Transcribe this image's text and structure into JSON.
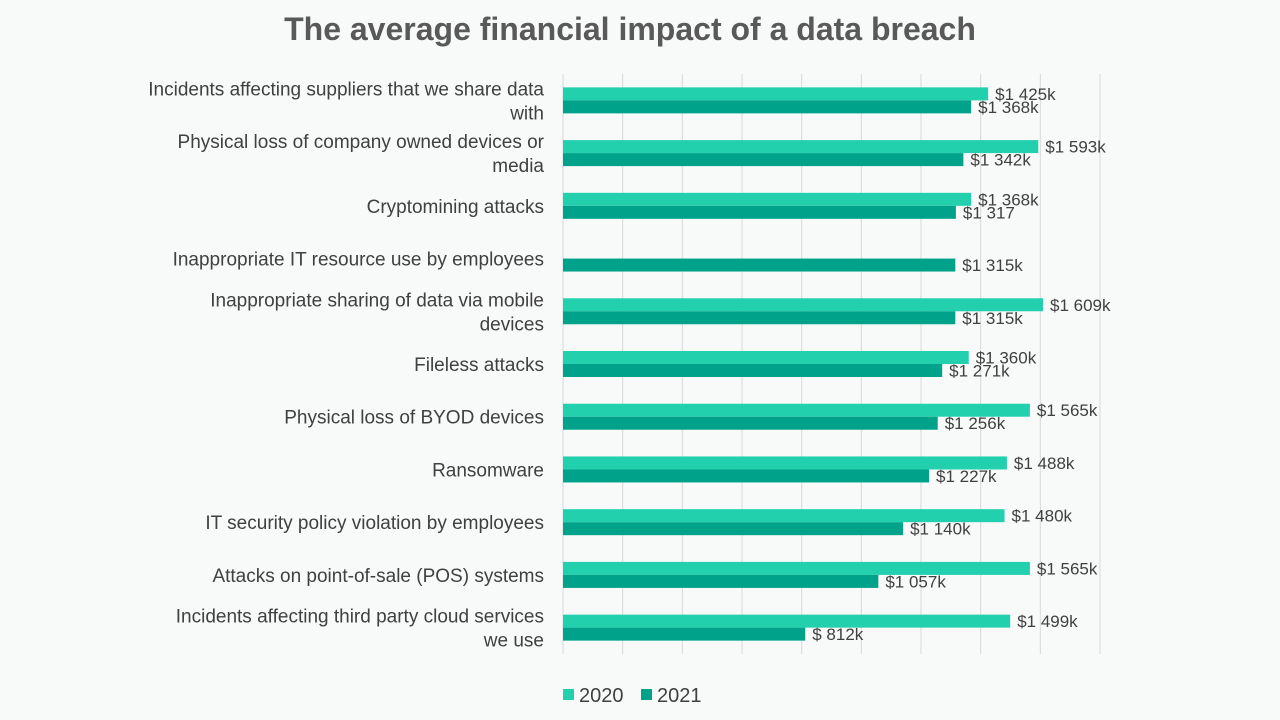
{
  "chart_data": {
    "type": "bar",
    "orientation": "horizontal",
    "title": "The average financial impact of a data breach",
    "categories": [
      [
        "Incidents affecting suppliers that we share data",
        "with"
      ],
      [
        "Physical loss of company owned devices or",
        "media"
      ],
      [
        "Cryptomining attacks"
      ],
      [
        "Inappropriate IT resource use by employees"
      ],
      [
        "Inappropriate sharing of data via mobile",
        "devices"
      ],
      [
        "Fileless attacks"
      ],
      [
        "Physical loss of BYOD devices"
      ],
      [
        "Ransomware"
      ],
      [
        "IT security policy violation by employees"
      ],
      [
        "Attacks on point-of-sale (POS) systems"
      ],
      [
        "Incidents affecting third party cloud services",
        "we use"
      ]
    ],
    "series": [
      {
        "name": "2020",
        "color": "#23d0ad",
        "values": [
          1425,
          1593,
          1368,
          null,
          1609,
          1360,
          1565,
          1488,
          1480,
          1565,
          1499
        ],
        "labels": [
          "$1 425k",
          "$1 593k",
          "$1 368k",
          "",
          "$1 609k",
          "$1 360k",
          "$1 565k",
          "$1 488k",
          "$1 480k",
          "$1 565k",
          "$1 499k"
        ]
      },
      {
        "name": "2021",
        "color": "#00a38a",
        "values": [
          1368,
          1342,
          1317,
          1315,
          1315,
          1271,
          1256,
          1227,
          1140,
          1057,
          812
        ],
        "labels": [
          "$1 368k",
          "$1 342k",
          "$1 317",
          "$1 315k",
          "$1 315k",
          "$1 271k",
          "$1 256k",
          "$1 227k",
          "$1 140k",
          "$1 057k",
          "$ 812k"
        ]
      }
    ],
    "xlim": [
      0,
      1800
    ],
    "grid": true,
    "legend_position": "bottom"
  }
}
